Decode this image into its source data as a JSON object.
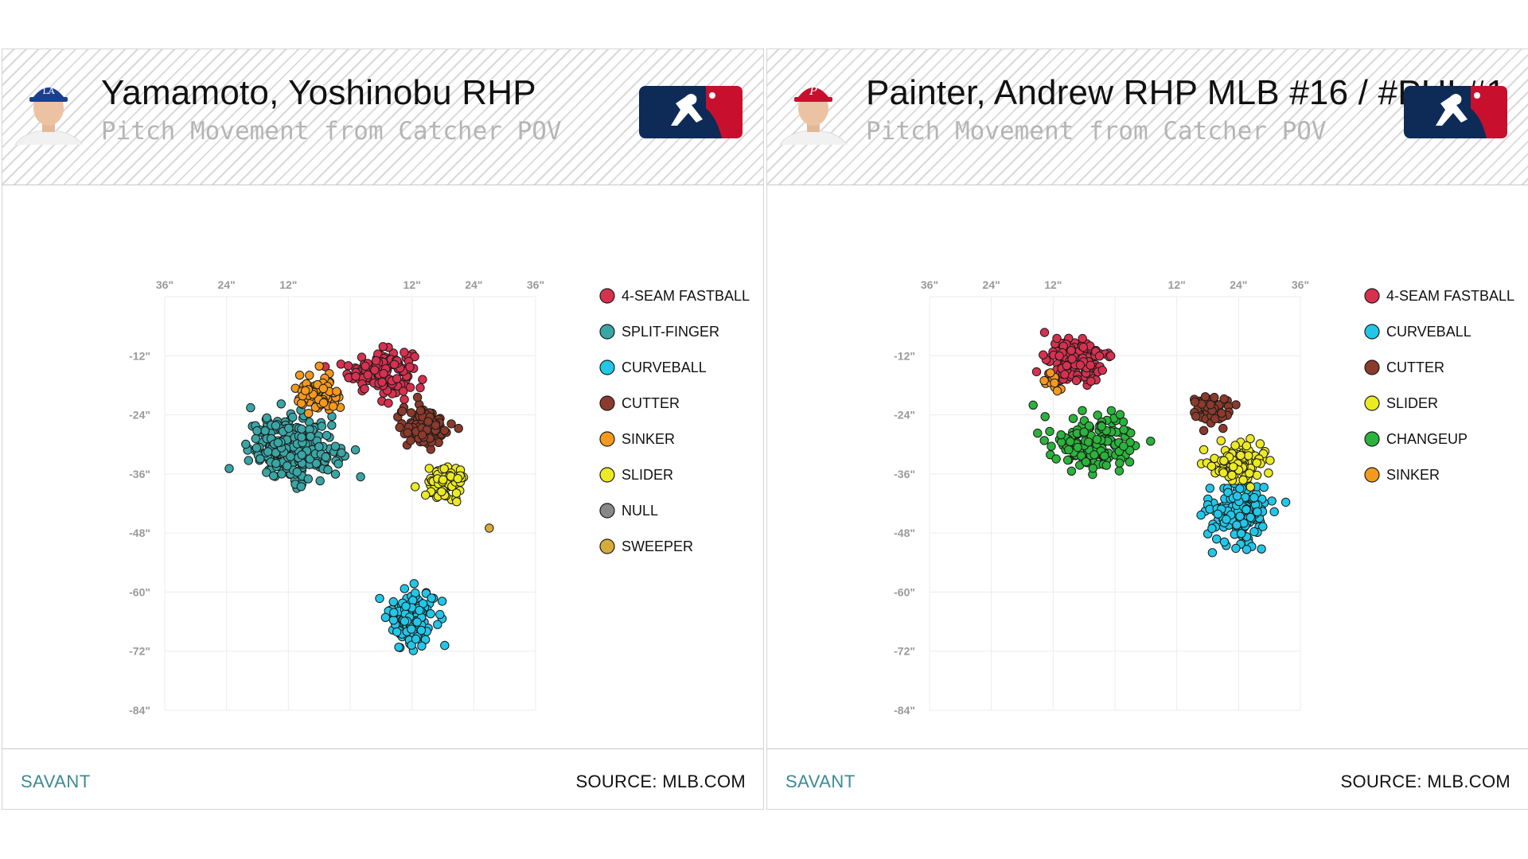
{
  "panels": [
    {
      "player_name": "Yamamoto, Yoshinobu RHP",
      "subtitle": "Pitch Movement from Catcher POV",
      "brand": "SAVANT",
      "source": "SOURCE: MLB.COM",
      "cap_color": "#1a3f8f"
    },
    {
      "player_name": "Painter, Andrew RHP MLB #16 / #PHI #1",
      "subtitle": "Pitch Movement from Catcher POV",
      "brand": "SAVANT",
      "source": "SOURCE: MLB.COM",
      "cap_color": "#c8102e"
    }
  ],
  "chart_data": [
    {
      "type": "scatter",
      "x_ticks": [
        "36\"",
        "24\"",
        "12\"",
        "12\"",
        "24\"",
        "36\""
      ],
      "y_ticks": [
        "-12\"",
        "-24\"",
        "-36\"",
        "-48\"",
        "-60\"",
        "-72\"",
        "-84\""
      ],
      "xlim": [
        -36,
        36
      ],
      "ylim": [
        -84,
        0
      ],
      "grid": true,
      "legend_position": "right",
      "series": [
        {
          "name": "4-SEAM FASTBALL",
          "color": "#d6314f",
          "center": [
            6,
            -15
          ],
          "spread": [
            5,
            3.5
          ],
          "count": 150
        },
        {
          "name": "SPLIT-FINGER",
          "color": "#3aa5a5",
          "center": [
            -11,
            -31
          ],
          "spread": [
            7,
            5
          ],
          "count": 260
        },
        {
          "name": "CURVEBALL",
          "color": "#22c7e8",
          "center": [
            12,
            -65
          ],
          "spread": [
            3.5,
            4.5
          ],
          "count": 170
        },
        {
          "name": "CUTTER",
          "color": "#8b3a2b",
          "center": [
            14.5,
            -26.5
          ],
          "spread": [
            4,
            3.5
          ],
          "count": 110
        },
        {
          "name": "SINKER",
          "color": "#f39a1e",
          "center": [
            -6,
            -20
          ],
          "spread": [
            3.5,
            3
          ],
          "count": 70
        },
        {
          "name": "SLIDER",
          "color": "#ecea24",
          "center": [
            18.5,
            -38
          ],
          "spread": [
            3,
            3
          ],
          "count": 70
        },
        {
          "name": "NULL",
          "color": "#888888",
          "center": [
            0,
            0
          ],
          "spread": [
            0,
            0
          ],
          "count": 0
        },
        {
          "name": "SWEEPER",
          "color": "#d7ab3a",
          "center": [
            27,
            -47
          ],
          "spread": [
            0,
            0
          ],
          "count": 1
        }
      ]
    },
    {
      "type": "scatter",
      "x_ticks": [
        "36\"",
        "24\"",
        "12\"",
        "12\"",
        "24\"",
        "36\""
      ],
      "y_ticks": [
        "-12\"",
        "-24\"",
        "-36\"",
        "-48\"",
        "-60\"",
        "-72\"",
        "-84\""
      ],
      "xlim": [
        -36,
        36
      ],
      "ylim": [
        -84,
        0
      ],
      "grid": true,
      "legend_position": "right",
      "series": [
        {
          "name": "4-SEAM FASTBALL",
          "color": "#d6314f",
          "center": [
            -7.5,
            -13.5
          ],
          "spread": [
            4.5,
            3.5
          ],
          "count": 150
        },
        {
          "name": "CURVEBALL",
          "color": "#22c7e8",
          "center": [
            24,
            -44
          ],
          "spread": [
            4.5,
            4.5
          ],
          "count": 190
        },
        {
          "name": "CUTTER",
          "color": "#8b3a2b",
          "center": [
            19,
            -23
          ],
          "spread": [
            3,
            2.5
          ],
          "count": 60
        },
        {
          "name": "SLIDER",
          "color": "#ecea24",
          "center": [
            24,
            -34
          ],
          "spread": [
            4,
            3.5
          ],
          "count": 110
        },
        {
          "name": "CHANGEUP",
          "color": "#2bb33c",
          "center": [
            -4.5,
            -30
          ],
          "spread": [
            7,
            4.5
          ],
          "count": 160
        },
        {
          "name": "SINKER",
          "color": "#f39a1e",
          "center": [
            -12,
            -17.5
          ],
          "spread": [
            1.5,
            1.5
          ],
          "count": 10
        }
      ]
    }
  ]
}
